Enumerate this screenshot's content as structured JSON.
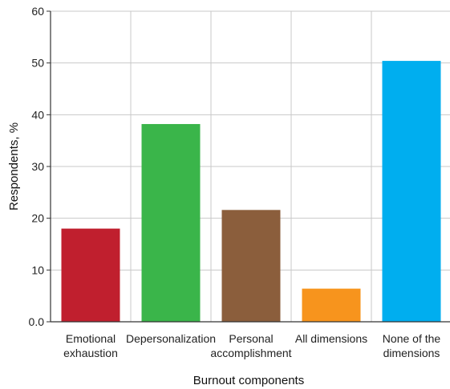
{
  "chart_data": {
    "type": "bar",
    "title": "",
    "xlabel": "Burnout components",
    "ylabel": "Respondents, %",
    "ylim": [
      0,
      60
    ],
    "yticks": [
      "0.0",
      "10",
      "20",
      "30",
      "40",
      "50",
      "60"
    ],
    "grid": true,
    "categories": [
      [
        "Emotional",
        "exhaustion"
      ],
      [
        "Depersonalization"
      ],
      [
        "Personal",
        "accomplishment"
      ],
      [
        "All dimensions"
      ],
      [
        "None of the",
        "dimensions"
      ]
    ],
    "values": [
      18,
      38.2,
      21.6,
      6.4,
      50.4
    ],
    "colors": [
      "#c01f2e",
      "#3ab54a",
      "#8b5e3c",
      "#f7941d",
      "#00aeef"
    ]
  }
}
